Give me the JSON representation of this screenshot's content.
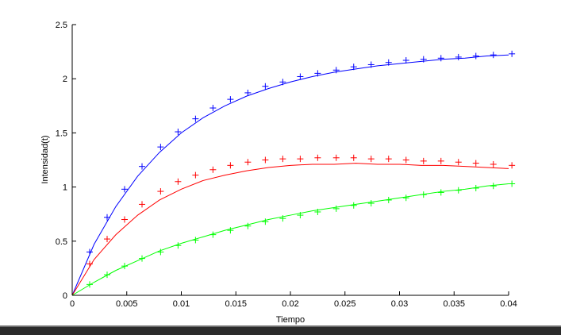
{
  "chart_data": {
    "type": "line",
    "title": "",
    "xlabel": "Tiempo",
    "ylabel": "Intensidad(t)",
    "xlim": [
      0,
      0.04
    ],
    "ylim": [
      0,
      2.5
    ],
    "x_ticks": [
      "0",
      "0.005",
      "0.01",
      "0.015",
      "0.02",
      "0.025",
      "0.03",
      "0.035",
      "0.04"
    ],
    "y_ticks": [
      "0",
      "0.5",
      "1",
      "1.5",
      "2",
      "2.5"
    ],
    "x_tick_values": [
      0,
      0.005,
      0.01,
      0.015,
      0.02,
      0.025,
      0.03,
      0.035,
      0.04
    ],
    "y_tick_values": [
      0,
      0.5,
      1,
      1.5,
      2,
      2.5
    ],
    "grid": false,
    "legend": "none",
    "series": [
      {
        "color": "#0000ff",
        "line": {
          "x": [
            0,
            0.002,
            0.004,
            0.006,
            0.008,
            0.01,
            0.012,
            0.014,
            0.016,
            0.018,
            0.02,
            0.022,
            0.024,
            0.026,
            0.028,
            0.03,
            0.032,
            0.034,
            0.036,
            0.038,
            0.04
          ],
          "y": [
            0,
            0.47,
            0.82,
            1.1,
            1.32,
            1.5,
            1.64,
            1.75,
            1.84,
            1.91,
            1.97,
            2.02,
            2.06,
            2.09,
            2.12,
            2.14,
            2.16,
            2.18,
            2.19,
            2.21,
            2.22
          ]
        },
        "markers": {
          "symbol": "+",
          "x": [
            0.0016,
            0.0032,
            0.0048,
            0.0064,
            0.0081,
            0.0097,
            0.0113,
            0.0129,
            0.0145,
            0.0161,
            0.0177,
            0.0193,
            0.0209,
            0.0225,
            0.0242,
            0.0258,
            0.0274,
            0.029,
            0.0306,
            0.0322,
            0.0338,
            0.0354,
            0.037,
            0.0386,
            0.0403
          ],
          "y": [
            0.4,
            0.72,
            0.98,
            1.19,
            1.37,
            1.51,
            1.63,
            1.73,
            1.81,
            1.87,
            1.93,
            1.97,
            2.02,
            2.05,
            2.08,
            2.11,
            2.13,
            2.15,
            2.17,
            2.18,
            2.19,
            2.2,
            2.21,
            2.22,
            2.23
          ]
        }
      },
      {
        "color": "#ff0000",
        "line": {
          "x": [
            0,
            0.002,
            0.004,
            0.006,
            0.008,
            0.01,
            0.012,
            0.014,
            0.016,
            0.018,
            0.02,
            0.022,
            0.024,
            0.026,
            0.028,
            0.03,
            0.032,
            0.034,
            0.036,
            0.038,
            0.04
          ],
          "y": [
            0,
            0.33,
            0.56,
            0.74,
            0.88,
            0.98,
            1.06,
            1.11,
            1.15,
            1.18,
            1.2,
            1.21,
            1.21,
            1.22,
            1.21,
            1.21,
            1.2,
            1.2,
            1.19,
            1.18,
            1.17
          ]
        },
        "markers": {
          "symbol": "+",
          "x": [
            0.0016,
            0.0032,
            0.0048,
            0.0064,
            0.0081,
            0.0097,
            0.0113,
            0.0129,
            0.0145,
            0.0161,
            0.0177,
            0.0193,
            0.0209,
            0.0225,
            0.0242,
            0.0258,
            0.0274,
            0.029,
            0.0306,
            0.0322,
            0.0338,
            0.0354,
            0.037,
            0.0386,
            0.0403
          ],
          "y": [
            0.29,
            0.52,
            0.7,
            0.84,
            0.96,
            1.05,
            1.11,
            1.16,
            1.2,
            1.23,
            1.25,
            1.26,
            1.26,
            1.27,
            1.27,
            1.27,
            1.26,
            1.26,
            1.25,
            1.24,
            1.24,
            1.23,
            1.22,
            1.21,
            1.2
          ]
        }
      },
      {
        "color": "#00ff00",
        "line": {
          "x": [
            0,
            0.002,
            0.004,
            0.006,
            0.008,
            0.01,
            0.012,
            0.014,
            0.016,
            0.018,
            0.02,
            0.022,
            0.024,
            0.026,
            0.028,
            0.03,
            0.032,
            0.034,
            0.036,
            0.038,
            0.04
          ],
          "y": [
            0,
            0.12,
            0.23,
            0.32,
            0.41,
            0.48,
            0.54,
            0.6,
            0.65,
            0.7,
            0.74,
            0.78,
            0.81,
            0.84,
            0.87,
            0.9,
            0.93,
            0.96,
            0.98,
            1.01,
            1.03
          ]
        },
        "markers": {
          "symbol": "+",
          "x": [
            0.0016,
            0.0032,
            0.0048,
            0.0064,
            0.0081,
            0.0097,
            0.0113,
            0.0129,
            0.0145,
            0.0161,
            0.0177,
            0.0193,
            0.0209,
            0.0225,
            0.0242,
            0.0258,
            0.0274,
            0.029,
            0.0306,
            0.0322,
            0.0338,
            0.0354,
            0.037,
            0.0386,
            0.0403
          ],
          "y": [
            0.1,
            0.19,
            0.27,
            0.34,
            0.4,
            0.46,
            0.51,
            0.56,
            0.6,
            0.64,
            0.68,
            0.71,
            0.74,
            0.77,
            0.8,
            0.83,
            0.85,
            0.88,
            0.9,
            0.93,
            0.95,
            0.97,
            0.99,
            1.01,
            1.03
          ]
        }
      }
    ]
  }
}
